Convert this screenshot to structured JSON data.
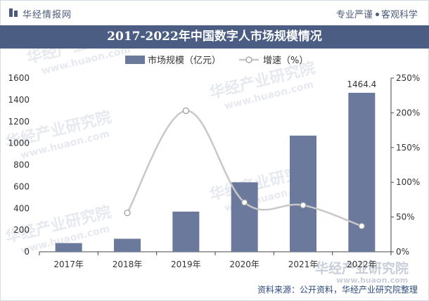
{
  "header": {
    "brand": "华经情报网",
    "tagline_left": "专业严谨",
    "tagline_right": "客观科学"
  },
  "watermark": {
    "brand": "华经产业研究院",
    "url": "www.huaon.com"
  },
  "source_text": "资料来源：公开资料，华经产业研究院整理",
  "colors": {
    "bar": "#6b7a9c",
    "line": "#c8c8c8",
    "title_bg": "#4b5d83"
  },
  "chart_data": {
    "type": "bar",
    "title": "2017-2022年中国数字人市场规模情况",
    "categories": [
      "2017年",
      "2018年",
      "2019年",
      "2020年",
      "2021年",
      "2022年"
    ],
    "series": [
      {
        "name": "市场规模（亿元）",
        "type": "bar",
        "axis": "left",
        "values": [
          80,
          120,
          370,
          640,
          1070,
          1464.4
        ]
      },
      {
        "name": "增速（%）",
        "type": "line",
        "axis": "right",
        "values": [
          null,
          56,
          203,
          71,
          67,
          37
        ]
      }
    ],
    "data_labels": [
      {
        "category": "2022年",
        "text": "1464.4"
      }
    ],
    "y_left": {
      "min": 0,
      "max": 1600,
      "ticks": [
        "0",
        "200",
        "400",
        "600",
        "800",
        "1000",
        "1200",
        "1400",
        "1600"
      ]
    },
    "y_right": {
      "min": 0,
      "max": 250,
      "ticks": [
        "0%",
        "50%",
        "100%",
        "150%",
        "200%",
        "250%"
      ]
    },
    "legend_position": "top-center",
    "grid": false
  }
}
